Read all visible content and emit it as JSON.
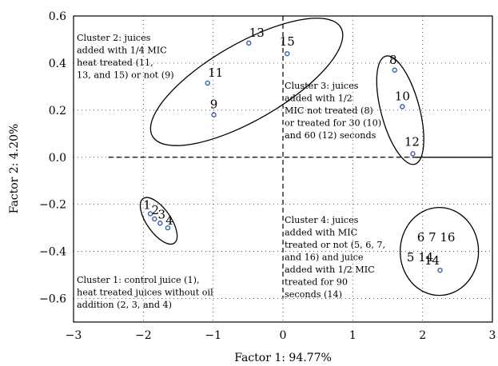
{
  "chart_data": {
    "type": "scatter",
    "xlabel": "Factor 1: 94.77%",
    "ylabel": "Factor 2: 4.20%",
    "xlim": [
      -3,
      3
    ],
    "ylim": [
      -0.7,
      0.6
    ],
    "xticks": [
      "−3",
      "−2",
      "−1",
      "0",
      "1",
      "2",
      "3"
    ],
    "xtick_values": [
      -3,
      -2,
      -1,
      0,
      1,
      2,
      3
    ],
    "yticks": [
      "−0.6",
      "−0.4",
      "−0.2",
      "0.0",
      "0.2",
      "0.4",
      "0.6"
    ],
    "ytick_values": [
      -0.6,
      -0.4,
      -0.2,
      0.0,
      0.2,
      0.4,
      0.6
    ],
    "grid": true,
    "marker_color": "#3a5fa8",
    "points": [
      {
        "label": "1",
        "x": -1.9,
        "y": -0.24
      },
      {
        "label": "2",
        "x": -1.84,
        "y": -0.262
      },
      {
        "label": "3",
        "x": -1.76,
        "y": -0.28
      },
      {
        "label": "4",
        "x": -1.65,
        "y": -0.3
      },
      {
        "label": "9",
        "x": -0.99,
        "y": 0.18
      },
      {
        "label": "11",
        "x": -1.08,
        "y": 0.315
      },
      {
        "label": "13",
        "x": -0.49,
        "y": 0.485
      },
      {
        "label": "15",
        "x": 0.06,
        "y": 0.44
      },
      {
        "label": "8",
        "x": 1.6,
        "y": 0.37
      },
      {
        "label": "10",
        "x": 1.71,
        "y": 0.215
      },
      {
        "label": "12",
        "x": 1.86,
        "y": 0.015
      },
      {
        "label": "14",
        "x": 2.25,
        "y": -0.48
      }
    ],
    "group_labels": [
      "6 7 16",
      "5 14"
    ],
    "annotations": [
      {
        "name": "cluster-2-note",
        "lines": [
          "Cluster 2: juices",
          "added with 1/4 MIC",
          "heat treated (11,",
          "13, and 15) or not (9)"
        ]
      },
      {
        "name": "cluster-3-note",
        "lines": [
          "Cluster 3: juices",
          "added with 1/2",
          "MIC not treated (8)",
          "or treated for 30 (10)",
          "and 60 (12) seconds"
        ]
      },
      {
        "name": "cluster-4-note",
        "lines": [
          "Cluster 4: juices",
          "added with MIC",
          "treated or not (5, 6, 7,",
          "and 16) and juice",
          "added with 1/2 MIC",
          "treated for 90",
          "seconds (14)"
        ]
      },
      {
        "name": "cluster-1-note",
        "lines": [
          "Cluster 1: control juice (1),",
          "heat treated juices without oil",
          "addition (2, 3, and 4)"
        ]
      }
    ]
  }
}
